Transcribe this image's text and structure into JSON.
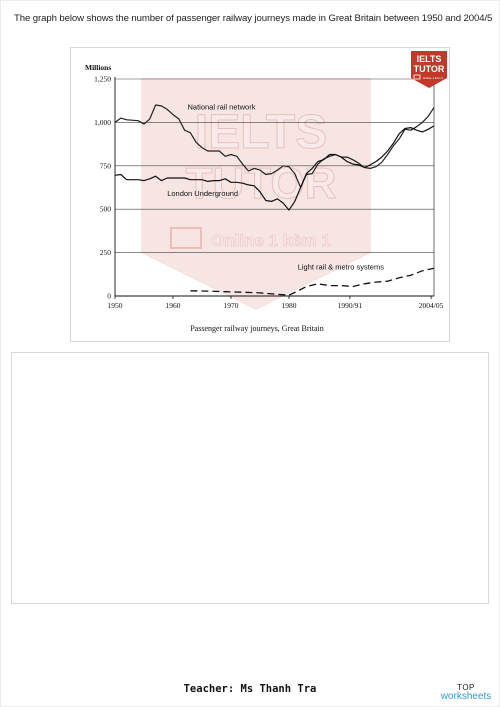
{
  "heading": "The graph below shows the number of passenger railway journeys made in Great Britain between 1950 and 2004/5",
  "chart_data": {
    "type": "line",
    "ylabel": "Millions",
    "caption": "Passenger railway journeys, Great Britain",
    "xticks": [
      {
        "x": 1950,
        "label": "1950"
      },
      {
        "x": 1960,
        "label": "1960"
      },
      {
        "x": 1970,
        "label": "1970"
      },
      {
        "x": 1980,
        "label": "1980"
      },
      {
        "x": 1990.5,
        "label": "1990/91"
      },
      {
        "x": 2004.5,
        "label": "2004/05"
      }
    ],
    "yticks": [
      {
        "y": 0,
        "label": "0"
      },
      {
        "y": 250,
        "label": "250"
      },
      {
        "y": 500,
        "label": "500"
      },
      {
        "y": 750,
        "label": "750"
      },
      {
        "y": 1000,
        "label": "1,000"
      },
      {
        "y": 1250,
        "label": "1,250"
      }
    ],
    "xlim": [
      1950,
      2005
    ],
    "ylim": [
      0,
      1250
    ],
    "grid": true,
    "series": [
      {
        "name": "National rail network",
        "style": "solid",
        "color": "#222222",
        "label_anchor": {
          "x": 1962.5,
          "y": 1075
        },
        "points": [
          [
            1950,
            1000
          ],
          [
            1951,
            1025
          ],
          [
            1952,
            1015
          ],
          [
            1954,
            1010
          ],
          [
            1955,
            990
          ],
          [
            1956,
            1020
          ],
          [
            1957,
            1100
          ],
          [
            1958,
            1095
          ],
          [
            1959,
            1075
          ],
          [
            1960,
            1045
          ],
          [
            1961,
            1020
          ],
          [
            1962,
            955
          ],
          [
            1963,
            940
          ],
          [
            1964,
            885
          ],
          [
            1965,
            855
          ],
          [
            1966,
            835
          ],
          [
            1967,
            835
          ],
          [
            1968,
            835
          ],
          [
            1969,
            805
          ],
          [
            1970,
            815
          ],
          [
            1971,
            805
          ],
          [
            1972,
            760
          ],
          [
            1973,
            720
          ],
          [
            1974,
            735
          ],
          [
            1975,
            725
          ],
          [
            1976,
            700
          ],
          [
            1977,
            705
          ],
          [
            1978,
            725
          ],
          [
            1979,
            750
          ],
          [
            1980,
            745
          ],
          [
            1981,
            705
          ],
          [
            1982,
            625
          ],
          [
            1983,
            700
          ],
          [
            1984,
            705
          ],
          [
            1985,
            760
          ],
          [
            1986,
            790
          ],
          [
            1987,
            805
          ],
          [
            1988,
            815
          ],
          [
            1989,
            800
          ],
          [
            1990,
            800
          ],
          [
            1991,
            785
          ],
          [
            1992,
            765
          ],
          [
            1993,
            740
          ],
          [
            1994,
            735
          ],
          [
            1995,
            745
          ],
          [
            1996,
            770
          ],
          [
            1997,
            815
          ],
          [
            1998,
            865
          ],
          [
            1999,
            905
          ],
          [
            2000,
            960
          ],
          [
            2001,
            955
          ],
          [
            2002,
            975
          ],
          [
            2003,
            1000
          ],
          [
            2004,
            1035
          ],
          [
            2005,
            1085
          ]
        ]
      },
      {
        "name": "London Underground",
        "style": "solid",
        "color": "#111111",
        "label_anchor": {
          "x": 1959,
          "y": 575
        },
        "points": [
          [
            1950,
            695
          ],
          [
            1951,
            700
          ],
          [
            1952,
            670
          ],
          [
            1954,
            670
          ],
          [
            1955,
            665
          ],
          [
            1956,
            675
          ],
          [
            1957,
            690
          ],
          [
            1958,
            665
          ],
          [
            1959,
            680
          ],
          [
            1960,
            680
          ],
          [
            1961,
            680
          ],
          [
            1962,
            680
          ],
          [
            1963,
            670
          ],
          [
            1964,
            670
          ],
          [
            1965,
            670
          ],
          [
            1966,
            660
          ],
          [
            1967,
            665
          ],
          [
            1968,
            665
          ],
          [
            1969,
            675
          ],
          [
            1970,
            655
          ],
          [
            1971,
            655
          ],
          [
            1972,
            650
          ],
          [
            1973,
            640
          ],
          [
            1974,
            635
          ],
          [
            1975,
            600
          ],
          [
            1976,
            550
          ],
          [
            1977,
            545
          ],
          [
            1978,
            560
          ],
          [
            1979,
            535
          ],
          [
            1980,
            495
          ],
          [
            1981,
            545
          ],
          [
            1982,
            625
          ],
          [
            1983,
            705
          ],
          [
            1984,
            735
          ],
          [
            1985,
            775
          ],
          [
            1986,
            785
          ],
          [
            1987,
            815
          ],
          [
            1988,
            815
          ],
          [
            1989,
            800
          ],
          [
            1990,
            775
          ],
          [
            1991,
            760
          ],
          [
            1992,
            755
          ],
          [
            1993,
            740
          ],
          [
            1994,
            755
          ],
          [
            1995,
            775
          ],
          [
            1996,
            800
          ],
          [
            1997,
            835
          ],
          [
            1998,
            880
          ],
          [
            1999,
            935
          ],
          [
            2000,
            965
          ],
          [
            2001,
            970
          ],
          [
            2002,
            955
          ],
          [
            2003,
            945
          ],
          [
            2004,
            960
          ],
          [
            2005,
            980
          ]
        ]
      },
      {
        "name": "Light rail & metro systems",
        "style": "dashed",
        "color": "#111111",
        "label_anchor": {
          "x": 1981.5,
          "y": 152
        },
        "points": [
          [
            1963,
            30
          ],
          [
            1966,
            28
          ],
          [
            1969,
            25
          ],
          [
            1972,
            22
          ],
          [
            1975,
            18
          ],
          [
            1978,
            10
          ],
          [
            1980,
            5
          ],
          [
            1981,
            20
          ],
          [
            1983,
            55
          ],
          [
            1985,
            70
          ],
          [
            1987,
            60
          ],
          [
            1989,
            60
          ],
          [
            1991,
            55
          ],
          [
            1993,
            70
          ],
          [
            1995,
            80
          ],
          [
            1997,
            85
          ],
          [
            1999,
            105
          ],
          [
            2001,
            120
          ],
          [
            2003,
            145
          ],
          [
            2005,
            160
          ]
        ]
      }
    ]
  },
  "watermark": {
    "badge_line1": "IELTS",
    "badge_line2": "TUTOR",
    "badge_line3": "Online 1 kèm 1",
    "big_text_1": "IELTS",
    "big_text_2": "TUTOR",
    "big_text_3": "Online  1 kèm 1",
    "color": "#c0392b"
  },
  "footer": {
    "teacher": "Teacher: Ms Thanh Tra",
    "brand_top": "TOP",
    "brand_bottom": "worksheets"
  }
}
